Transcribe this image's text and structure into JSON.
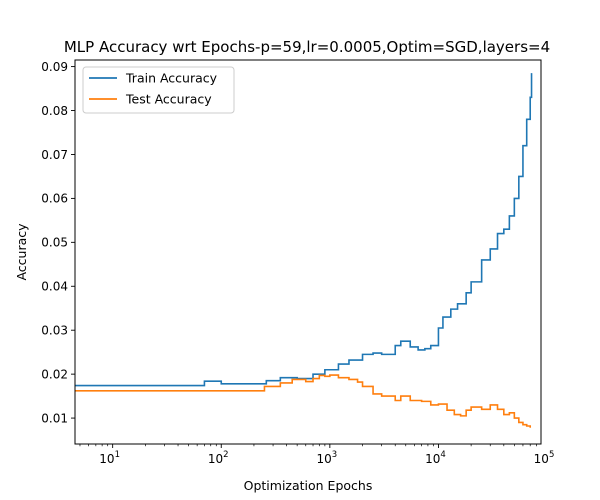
{
  "chart_data": {
    "type": "line",
    "title": "MLP Accuracy wrt Epochs-p=59,lr=0.0005,Optim=SGD,layers=4",
    "xlabel": "Optimization Epochs",
    "ylabel": "Accuracy",
    "xscale": "log",
    "xlim": [
      4.5,
      88000
    ],
    "ylim": [
      0.0041,
      0.0915
    ],
    "x_ticks": [
      10,
      100,
      1000,
      10000,
      100000
    ],
    "x_tick_labels": [
      {
        "base": "10",
        "exp": "1"
      },
      {
        "base": "10",
        "exp": "2"
      },
      {
        "base": "10",
        "exp": "3"
      },
      {
        "base": "10",
        "exp": "4"
      },
      {
        "base": "10",
        "exp": "5"
      }
    ],
    "y_ticks": [
      "0.01",
      "0.02",
      "0.03",
      "0.04",
      "0.05",
      "0.06",
      "0.07",
      "0.08",
      "0.09"
    ],
    "grid": false,
    "legend_position": "top-left",
    "series": [
      {
        "name": "Train Accuracy",
        "color": "#1f77b4",
        "x": [
          4.5,
          55,
          70,
          100,
          200,
          260,
          350,
          500,
          700,
          900,
          1200,
          1500,
          2000,
          2500,
          3000,
          4000,
          4500,
          5500,
          6500,
          7500,
          8500,
          10000,
          11000,
          13000,
          15000,
          18000,
          20000,
          25000,
          30000,
          35000,
          40000,
          45000,
          50000,
          55000,
          60000,
          65000,
          70000,
          72000
        ],
        "y": [
          0.0174,
          0.0174,
          0.0184,
          0.0178,
          0.0178,
          0.0185,
          0.0192,
          0.019,
          0.02,
          0.021,
          0.0223,
          0.0232,
          0.0245,
          0.0248,
          0.0245,
          0.0265,
          0.0275,
          0.0262,
          0.0255,
          0.0258,
          0.0265,
          0.0305,
          0.033,
          0.0348,
          0.036,
          0.0385,
          0.041,
          0.046,
          0.0485,
          0.052,
          0.053,
          0.056,
          0.06,
          0.065,
          0.072,
          0.078,
          0.083,
          0.0885
        ]
      },
      {
        "name": "Test Accuracy",
        "color": "#ff7f0e",
        "x": [
          4.5,
          200,
          250,
          350,
          450,
          600,
          700,
          800,
          900,
          1000,
          1200,
          1500,
          1800,
          2000,
          2500,
          3000,
          4000,
          4500,
          5500,
          7000,
          8500,
          10000,
          12000,
          14000,
          16000,
          18000,
          20000,
          25000,
          30000,
          35000,
          40000,
          45000,
          50000,
          55000,
          60000,
          65000,
          70000
        ],
        "y": [
          0.0162,
          0.0162,
          0.0172,
          0.018,
          0.0188,
          0.0183,
          0.019,
          0.0197,
          0.0195,
          0.0198,
          0.0192,
          0.0188,
          0.0182,
          0.0172,
          0.0155,
          0.015,
          0.014,
          0.015,
          0.014,
          0.0138,
          0.013,
          0.0132,
          0.0118,
          0.0108,
          0.0105,
          0.0118,
          0.0125,
          0.012,
          0.013,
          0.012,
          0.0108,
          0.0112,
          0.01,
          0.009,
          0.0085,
          0.0082,
          0.0078
        ]
      }
    ]
  }
}
